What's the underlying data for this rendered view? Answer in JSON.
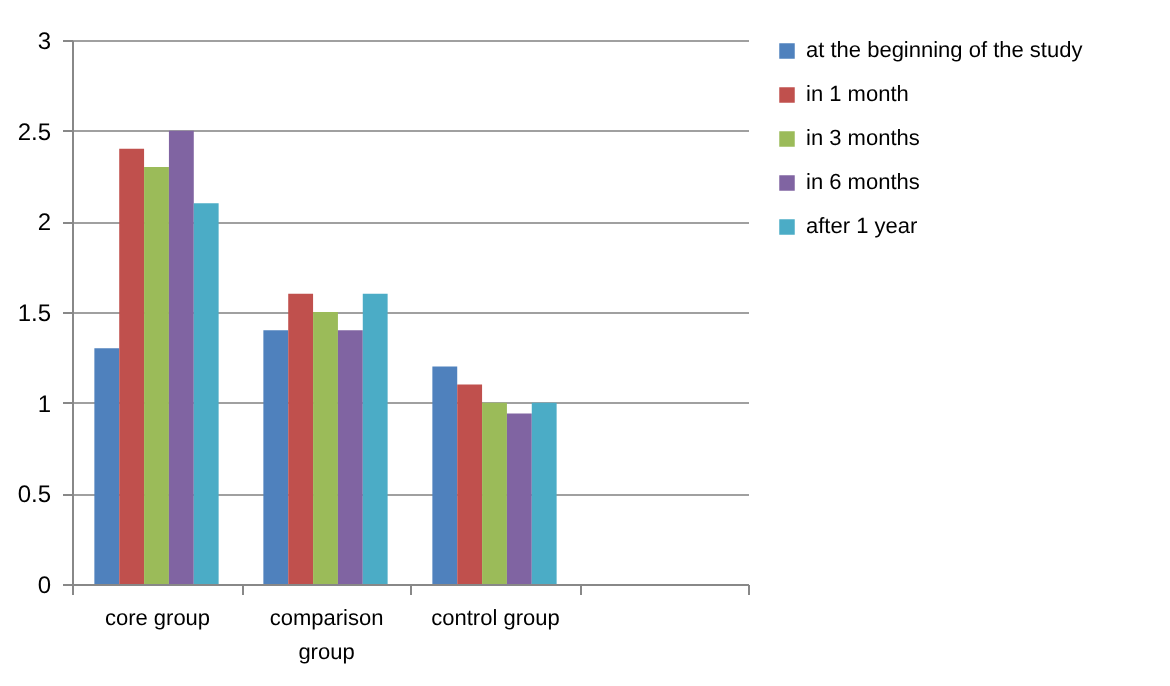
{
  "chart_data": {
    "type": "bar",
    "categories": [
      "core group",
      "comparison group",
      "control group",
      null
    ],
    "series": [
      {
        "name": "at the beginning of the study",
        "color": "#4f81bd",
        "values": [
          1.3,
          1.4,
          1.2,
          null
        ]
      },
      {
        "name": "in 1 month",
        "color": "#c0504d",
        "values": [
          2.4,
          1.6,
          1.1,
          null
        ]
      },
      {
        "name": "in 3 months",
        "color": "#9bbb59",
        "values": [
          2.3,
          1.5,
          1.0,
          null
        ]
      },
      {
        "name": "in 6 months",
        "color": "#8064a2",
        "values": [
          2.5,
          1.4,
          0.94,
          null
        ]
      },
      {
        "name": "after 1 year",
        "color": "#4bacc6",
        "values": [
          2.1,
          1.6,
          1.0,
          null
        ]
      }
    ],
    "ylim": [
      0,
      3
    ],
    "yticks": [
      0,
      0.5,
      1,
      1.5,
      2,
      2.5,
      3
    ],
    "grid": "y",
    "legend": "right"
  }
}
